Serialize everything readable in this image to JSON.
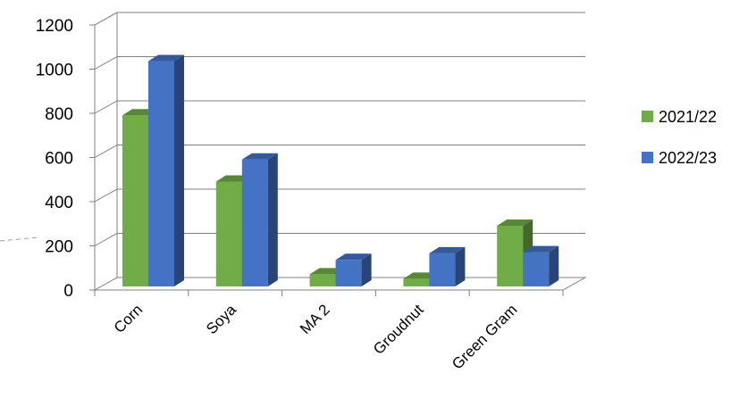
{
  "chart_data": {
    "type": "bar",
    "style": "3d-clustered-column",
    "categories": [
      "Corn",
      "Soya",
      "MA 2",
      "Groudnut",
      "Green Gram"
    ],
    "series": [
      {
        "name": "2021/22",
        "values": [
          775,
          475,
          55,
          35,
          275
        ],
        "color": "#70ad47"
      },
      {
        "name": "2022/23",
        "values": [
          1020,
          575,
          120,
          150,
          155
        ],
        "color": "#4472c4"
      }
    ],
    "ylim": [
      0,
      1200
    ],
    "yticks": [
      "0",
      "200",
      "400",
      "600",
      "800",
      "1000",
      "1200"
    ],
    "grid": true,
    "legend": "right"
  }
}
